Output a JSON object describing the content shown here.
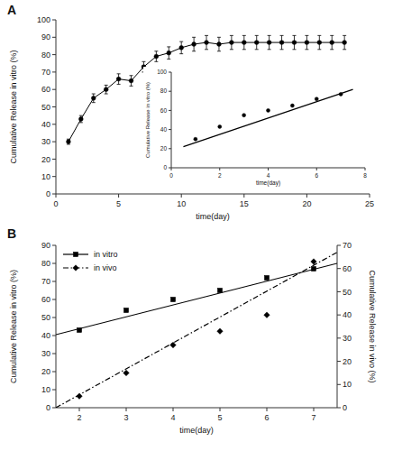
{
  "chart_data": [
    {
      "type": "line",
      "title": "A",
      "x_label": "time(day)",
      "y_label": "Cumulative Release in vitro (%)",
      "xlim": [
        0,
        25
      ],
      "ylim": [
        0,
        100
      ],
      "xticks": [
        0,
        5,
        10,
        15,
        20,
        25
      ],
      "yticks": [
        0,
        10,
        20,
        30,
        40,
        50,
        60,
        70,
        80,
        90,
        100
      ],
      "series": [
        {
          "x": [
            1,
            2,
            3,
            4,
            5,
            6,
            7,
            8,
            9,
            10,
            11,
            12,
            13,
            14,
            15,
            16,
            17,
            18,
            19,
            20,
            21,
            22,
            23
          ],
          "values": [
            30,
            43,
            55,
            60,
            66,
            65,
            73,
            79,
            81,
            84,
            86,
            87,
            86,
            87,
            87,
            87,
            87,
            87,
            87,
            87,
            87,
            87,
            87
          ],
          "errors": [
            1.5,
            2.0,
            2.5,
            2.5,
            3.0,
            3.0,
            3.0,
            3.0,
            3.5,
            3.5,
            4.0,
            4.0,
            4.0,
            4.0,
            4.0,
            4.0,
            4.0,
            4.0,
            4.0,
            4.0,
            4.0,
            4.0,
            4.0
          ],
          "color": "#000000",
          "marker": "circle",
          "line_style": "solid"
        }
      ]
    },
    {
      "type": "scatter",
      "x_label": "time(day)",
      "y_label": "Cumulative Release in vitro (%)",
      "xlim": [
        0,
        8
      ],
      "ylim": [
        0,
        100
      ],
      "xticks": [
        0,
        2,
        4,
        6,
        8
      ],
      "yticks": [
        0,
        20,
        40,
        60,
        80,
        100
      ],
      "series": [
        {
          "x": [
            1,
            2,
            3,
            4,
            5,
            6,
            7
          ],
          "values": [
            30,
            43,
            55,
            60,
            65,
            72,
            77
          ],
          "line_x": [
            0.5,
            7.5
          ],
          "line_values": [
            22,
            82
          ],
          "color": "#000000",
          "marker": "circle",
          "line_style": "solid"
        }
      ]
    },
    {
      "type": "scatter",
      "title": "B",
      "x_label": "time(day)",
      "y_label": "Cumulative Release in vitro (%)",
      "y2_label": "Cumulative Release in vivo (%)",
      "xlim": [
        1.5,
        7.5
      ],
      "ylim": [
        0,
        90
      ],
      "y2lim": [
        0,
        70
      ],
      "xticks": [
        2,
        3,
        4,
        5,
        6,
        7
      ],
      "yticks": [
        0,
        10,
        20,
        30,
        40,
        50,
        60,
        70,
        80,
        90
      ],
      "y2ticks": [
        0,
        10,
        20,
        30,
        40,
        50,
        60,
        70
      ],
      "legend": "upper left",
      "series": [
        {
          "name": "in vitro",
          "x": [
            2,
            3,
            4,
            5,
            6,
            7
          ],
          "values": [
            43,
            54,
            60,
            65,
            72,
            77
          ],
          "line_x": [
            1.5,
            7.5
          ],
          "line_values": [
            40.5,
            80.0
          ],
          "color": "#000000",
          "marker": "square",
          "line_style": "solid"
        },
        {
          "name": "in vivo",
          "axis": "y2",
          "x": [
            2,
            3,
            4,
            5,
            6,
            7
          ],
          "values": [
            5,
            15,
            27,
            33,
            40,
            63
          ],
          "line_x": [
            1.5,
            7.5
          ],
          "line_values": [
            0,
            67
          ],
          "color": "#000000",
          "marker": "diamond",
          "line_style": "dashdot"
        }
      ]
    }
  ]
}
